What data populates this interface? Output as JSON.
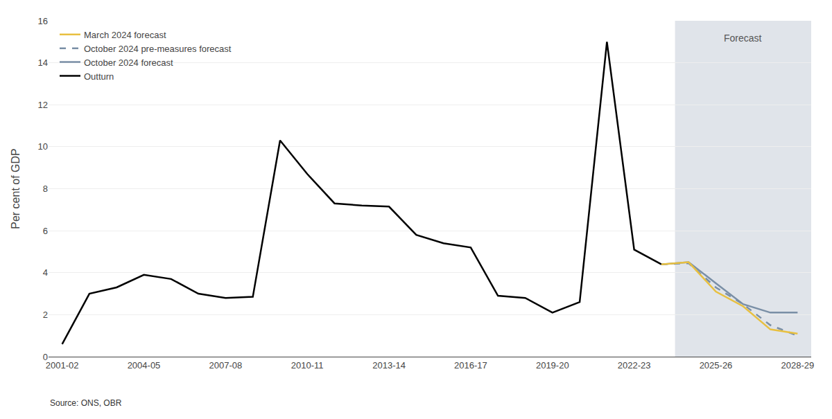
{
  "chart_data": {
    "type": "line",
    "ylabel": "Per cent of GDP",
    "source": "Source: ONS, OBR",
    "annotations": [
      {
        "text": "Forecast",
        "color": "#e0e4ea"
      }
    ],
    "categories": [
      "2001-02",
      null,
      null,
      "2004-05",
      null,
      null,
      "2007-08",
      null,
      null,
      "2010-11",
      null,
      null,
      "2013-14",
      null,
      null,
      "2016-17",
      null,
      null,
      "2019-20",
      null,
      null,
      "2022-23",
      null,
      null,
      "2025-26",
      null,
      null,
      "2028-29"
    ],
    "ylim": [
      0,
      16
    ],
    "yticks": [
      0,
      2,
      4,
      6,
      8,
      10,
      12,
      14,
      16
    ],
    "grid": true,
    "legend": "upper left",
    "series": [
      {
        "name": "March 2024 forecast",
        "color": "#e8c040",
        "line_style": "solid",
        "values": [
          null,
          null,
          null,
          null,
          null,
          null,
          null,
          null,
          null,
          null,
          null,
          null,
          null,
          null,
          null,
          null,
          null,
          null,
          null,
          null,
          null,
          null,
          4.4,
          4.5,
          3.1,
          2.4,
          1.3,
          1.1
        ]
      },
      {
        "name": "October 2024 pre-measures forecast",
        "color": "#7a8fa6",
        "line_style": "dashed",
        "values": [
          null,
          null,
          null,
          null,
          null,
          null,
          null,
          null,
          null,
          null,
          null,
          null,
          null,
          null,
          null,
          null,
          null,
          null,
          null,
          null,
          null,
          null,
          4.4,
          4.45,
          3.3,
          2.5,
          1.5,
          1.0
        ]
      },
      {
        "name": "October 2024 forecast",
        "color": "#7a8fa6",
        "line_style": "solid",
        "values": [
          null,
          null,
          null,
          null,
          null,
          null,
          null,
          null,
          null,
          null,
          null,
          null,
          null,
          null,
          null,
          null,
          null,
          null,
          null,
          null,
          null,
          null,
          4.4,
          4.5,
          3.5,
          2.5,
          2.1,
          2.1
        ]
      },
      {
        "name": "Outturn",
        "color": "#000000",
        "line_style": "solid",
        "values": [
          0.6,
          3.0,
          3.3,
          3.9,
          3.7,
          3.0,
          2.8,
          2.85,
          10.3,
          8.7,
          7.3,
          7.2,
          7.15,
          5.8,
          5.4,
          5.2,
          2.9,
          2.8,
          2.1,
          2.6,
          15.0,
          5.1,
          4.4,
          null,
          null,
          null,
          null,
          null
        ]
      }
    ]
  }
}
